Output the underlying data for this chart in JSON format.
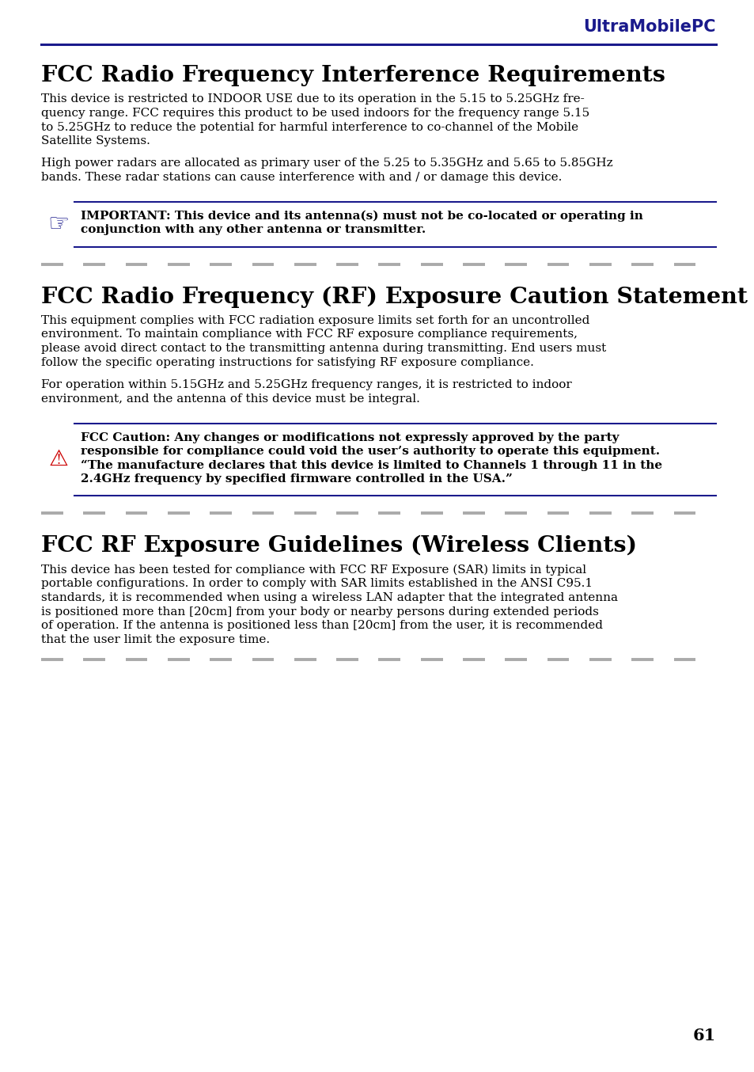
{
  "header_text": "UltraMobilePC",
  "header_color": "#1a1a8c",
  "header_line_color": "#1a1a8c",
  "background_color": "#ffffff",
  "text_color": "#000000",
  "section1_title": "FCC Radio Frequency Interference Requirements",
  "section1_para1_lines": [
    "This device is restricted to INDOOR USE due to its operation in the 5.15 to 5.25GHz fre-",
    "quency range. FCC requires this product to be used indoors for the frequency range 5.15",
    "to 5.25GHz to reduce the potential for harmful interference to co-channel of the Mobile",
    "Satellite Systems."
  ],
  "section1_para2_lines": [
    "High power radars are allocated as primary user of the 5.25 to 5.35GHz and 5.65 to 5.85GHz",
    "bands. These radar stations can cause interference with and / or damage this device."
  ],
  "section1_note_lines": [
    "IMPORTANT: This device and its antenna(s) must not be co-located or operating in",
    "conjunction with any other antenna or transmitter."
  ],
  "section2_title": "FCC Radio Frequency (RF) Exposure Caution Statement",
  "section2_para1_lines": [
    "This equipment complies with FCC radiation exposure limits set forth for an uncontrolled",
    "environment. To maintain compliance with FCC RF exposure compliance requirements,",
    "please avoid direct contact to the transmitting antenna during transmitting. End users must",
    "follow the specific operating instructions for satisfying RF exposure compliance."
  ],
  "section2_para2_lines": [
    "For operation within 5.15GHz and 5.25GHz frequency ranges, it is restricted to indoor",
    "environment, and the antenna of this device must be integral."
  ],
  "section2_note_lines": [
    "FCC Caution: Any changes or modifications not expressly approved by the party",
    "responsible for compliance could void the user’s authority to operate this equipment.",
    "“The manufacture declares that this device is limited to Channels 1 through 11 in the",
    "2.4GHz frequency by specified firmware controlled in the USA.”"
  ],
  "section3_title": "FCC RF Exposure Guidelines (Wireless Clients)",
  "section3_para1_lines": [
    "This device has been tested for compliance with FCC RF Exposure (SAR) limits in typical",
    "portable configurations. In order to comply with SAR limits established in the ANSI C95.1",
    "standards, it is recommended when using a wireless LAN adapter that the integrated antenna",
    "is positioned more than [20cm] from your body or nearby persons during extended periods",
    "of operation. If the antenna is positioned less than [20cm] from the user, it is recommended",
    "that the user limit the exposure time."
  ],
  "page_number": "61",
  "note_box_line_color": "#1a1a8c",
  "note_icon1_color": "#1a1a8c",
  "note_icon2_color": "#cc0000",
  "dash_line_color": "#aaaaaa"
}
